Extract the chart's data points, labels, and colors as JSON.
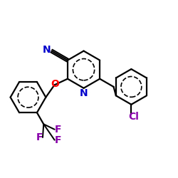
{
  "background_color": "#ffffff",
  "atom_colors": {
    "N_nitrile": "#0000cc",
    "N_pyridine": "#0000cc",
    "O": "#ff0000",
    "Cl": "#8800aa",
    "F": "#8800aa",
    "C": "#000000"
  },
  "bond_color": "#000000",
  "bond_lw": 1.6,
  "font_size_label": 10,
  "font_size_small": 9,
  "figsize": [
    2.5,
    2.5
  ],
  "dpi": 100
}
